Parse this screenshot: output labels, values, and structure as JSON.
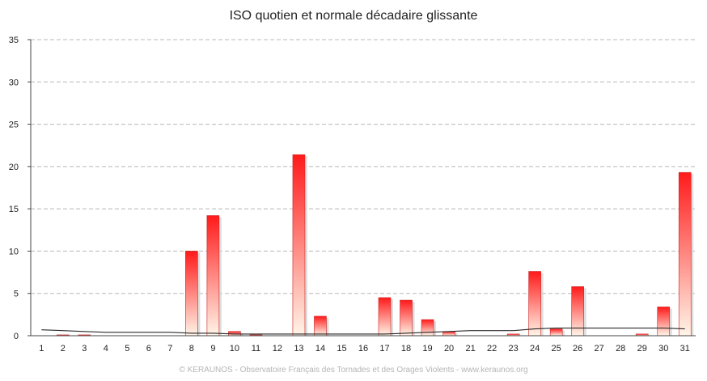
{
  "chart_data": {
    "type": "bar",
    "title": "ISO quotien et normale décadaire glissante",
    "xlabel": "",
    "ylabel": "",
    "ylim": [
      0,
      35
    ],
    "yticks": [
      "0",
      "5",
      "10",
      "15",
      "20",
      "25",
      "30",
      "35"
    ],
    "categories": [
      "1",
      "2",
      "3",
      "4",
      "5",
      "6",
      "7",
      "8",
      "9",
      "10",
      "11",
      "12",
      "13",
      "14",
      "15",
      "16",
      "17",
      "18",
      "19",
      "20",
      "21",
      "22",
      "23",
      "24",
      "25",
      "26",
      "27",
      "28",
      "29",
      "30",
      "31"
    ],
    "series": [
      {
        "values": [
          0,
          0.1,
          0.1,
          0,
          0,
          0,
          0,
          10.0,
          14.2,
          0.5,
          0.1,
          0,
          21.4,
          2.3,
          0,
          0,
          4.5,
          4.2,
          1.9,
          0.5,
          0,
          0,
          0.2,
          7.6,
          0.8,
          5.8,
          0,
          0,
          0.2,
          3.4,
          19.3
        ],
        "type": "bar",
        "color_top": "#ff1a1a",
        "color_bottom": "#fff5e8"
      },
      {
        "values": [
          0.7,
          0.6,
          0.5,
          0.4,
          0.4,
          0.4,
          0.4,
          0.3,
          0.3,
          0.2,
          0.2,
          0.2,
          0.2,
          0.2,
          0.2,
          0.2,
          0.2,
          0.3,
          0.4,
          0.5,
          0.6,
          0.6,
          0.6,
          0.8,
          0.9,
          0.9,
          0.9,
          0.9,
          0.9,
          0.9,
          0.8
        ],
        "type": "line",
        "color": "#2a2a2a"
      }
    ],
    "grid": true,
    "legend": "none"
  },
  "footer": "© KERAUNOS - Observatoire Français des Tornades et des Orages Violents - www.keraunos.org"
}
